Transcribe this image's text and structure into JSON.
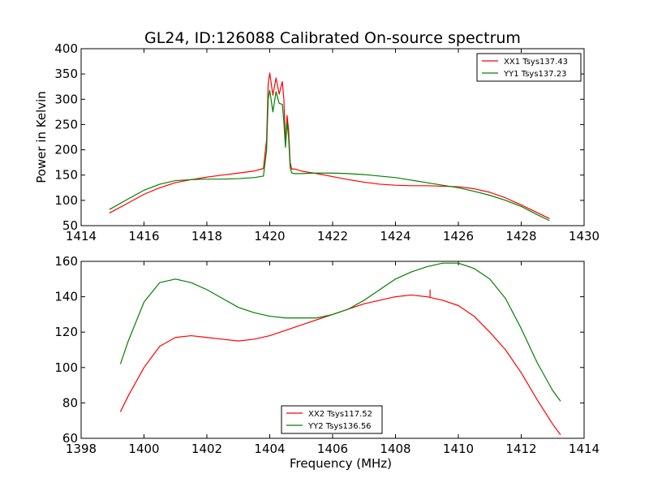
{
  "title": "GL24, ID:126088 Calibrated On-source spectrum",
  "chart_data": [
    {
      "type": "line",
      "xlim": [
        1414,
        1430
      ],
      "ylim": [
        50,
        400
      ],
      "xticks": [
        "1414",
        "1416",
        "1418",
        "1420",
        "1422",
        "1424",
        "1426",
        "1428",
        "1430"
      ],
      "yticks": [
        "50",
        "100",
        "150",
        "200",
        "250",
        "300",
        "350",
        "400"
      ],
      "xlabel": "",
      "ylabel": "Power in Kelvin",
      "legend_position": "upper-right",
      "series": [
        {
          "name": "XX1 Tsys137.43",
          "color": "#ff0000",
          "x": [
            1414.9,
            1415.5,
            1416,
            1416.5,
            1417,
            1417.5,
            1418,
            1418.5,
            1419,
            1419.5,
            1419.8,
            1419.9,
            1419.95,
            1420.0,
            1420.1,
            1420.2,
            1420.3,
            1420.4,
            1420.45,
            1420.5,
            1420.55,
            1420.6,
            1420.65,
            1420.7,
            1420.8,
            1421,
            1421.5,
            1422,
            1422.5,
            1423,
            1423.5,
            1424,
            1424.5,
            1425,
            1425.5,
            1426,
            1426.5,
            1427,
            1427.5,
            1428,
            1428.5,
            1428.9
          ],
          "y": [
            75,
            95,
            112,
            125,
            135,
            141,
            146,
            150,
            154,
            158,
            163,
            220,
            330,
            352,
            308,
            342,
            310,
            335,
            300,
            210,
            268,
            240,
            175,
            162,
            162,
            158,
            153,
            147,
            141,
            136,
            132,
            130,
            129,
            129,
            128,
            127,
            123,
            116,
            105,
            91,
            76,
            64
          ]
        },
        {
          "name": "YY1 Tsys137.23",
          "color": "#008000",
          "x": [
            1414.9,
            1415.5,
            1416,
            1416.5,
            1417,
            1417.5,
            1418,
            1418.5,
            1419,
            1419.5,
            1419.8,
            1419.9,
            1419.95,
            1420.0,
            1420.1,
            1420.2,
            1420.3,
            1420.4,
            1420.45,
            1420.5,
            1420.55,
            1420.6,
            1420.65,
            1420.7,
            1420.8,
            1421,
            1421.5,
            1422,
            1422.5,
            1423,
            1423.5,
            1424,
            1424.5,
            1425,
            1425.5,
            1426,
            1426.5,
            1427,
            1427.5,
            1428,
            1428.5,
            1428.9
          ],
          "y": [
            82,
            103,
            120,
            132,
            139,
            141,
            142,
            142,
            143,
            145,
            148,
            200,
            300,
            318,
            275,
            315,
            292,
            290,
            255,
            205,
            255,
            225,
            165,
            154,
            153,
            153,
            154,
            154,
            153,
            151,
            148,
            145,
            140,
            135,
            130,
            125,
            118,
            110,
            100,
            88,
            72,
            60
          ]
        }
      ]
    },
    {
      "type": "line",
      "xlim": [
        1398,
        1414
      ],
      "ylim": [
        60,
        160
      ],
      "xticks": [
        "1398",
        "1400",
        "1402",
        "1404",
        "1406",
        "1408",
        "1410",
        "1412",
        "1414"
      ],
      "yticks": [
        "60",
        "80",
        "100",
        "120",
        "140",
        "160"
      ],
      "xlabel": "Frequency (MHz)",
      "ylabel": "",
      "legend_position": "lower-center",
      "series": [
        {
          "name": "XX2 Tsys117.52",
          "color": "#ff0000",
          "x": [
            1399.25,
            1399.5,
            1400,
            1400.5,
            1401,
            1401.5,
            1402,
            1402.5,
            1403,
            1403.5,
            1404,
            1404.5,
            1405,
            1405.5,
            1406,
            1406.5,
            1407,
            1407.5,
            1408,
            1408.5,
            1409,
            1409.5,
            1410,
            1410.5,
            1411,
            1411.5,
            1412,
            1412.5,
            1413,
            1413.25
          ],
          "y": [
            75,
            84,
            100,
            112,
            117,
            118,
            117,
            116,
            115,
            116,
            118,
            121,
            124,
            127,
            130,
            133,
            136,
            138,
            140,
            141,
            140,
            138,
            135,
            129,
            120,
            110,
            97,
            82,
            68,
            62
          ],
          "annotations_spike": {
            "x": 1409.1,
            "y": 144
          }
        },
        {
          "name": "YY2 Tsys136.56",
          "color": "#008000",
          "x": [
            1399.25,
            1399.5,
            1400,
            1400.5,
            1401,
            1401.5,
            1402,
            1402.5,
            1403,
            1403.5,
            1404,
            1404.5,
            1405,
            1405.5,
            1406,
            1406.5,
            1407,
            1407.5,
            1408,
            1408.5,
            1409,
            1409.5,
            1410,
            1410.5,
            1411,
            1411.5,
            1412,
            1412.5,
            1413,
            1413.25
          ],
          "y": [
            102,
            115,
            137,
            148,
            150,
            148,
            144,
            139,
            134,
            131,
            129,
            128,
            128,
            128,
            130,
            133,
            138,
            144,
            150,
            154,
            157,
            159,
            159,
            156,
            150,
            139,
            122,
            103,
            87,
            81
          ]
        }
      ]
    }
  ]
}
